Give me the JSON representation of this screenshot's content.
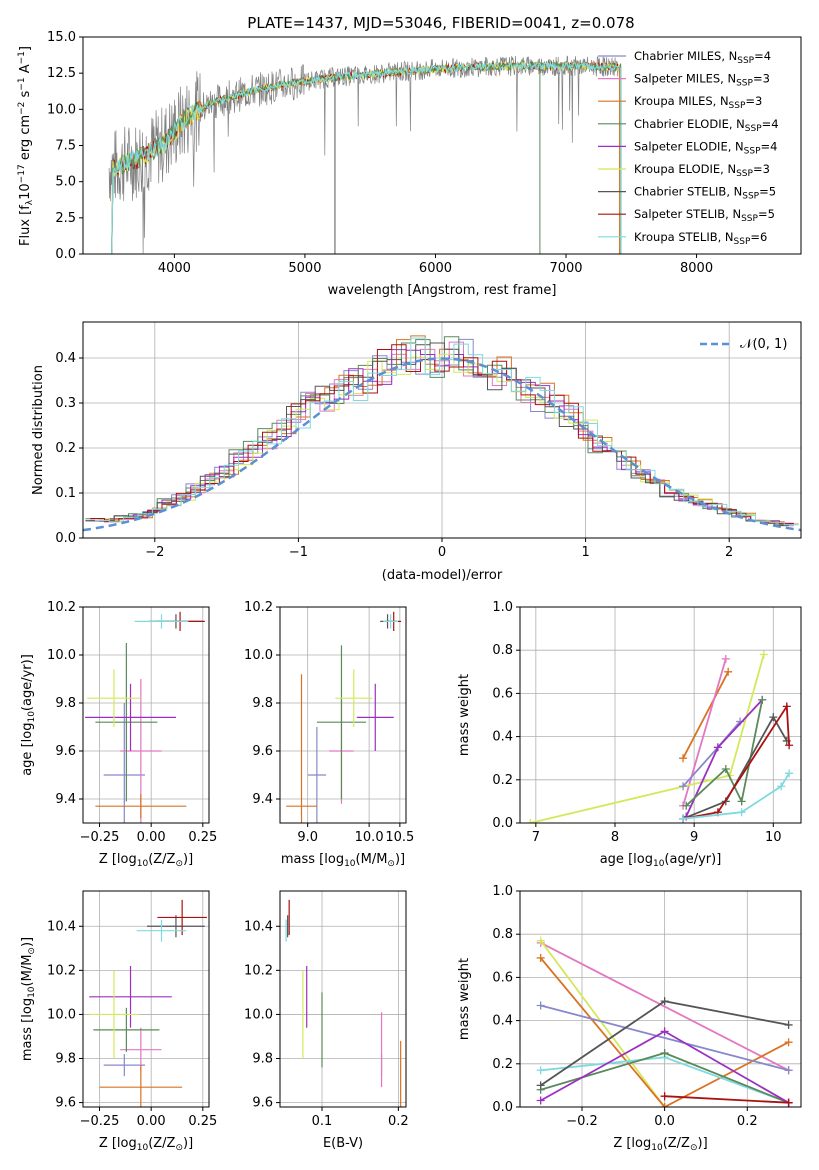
{
  "title": "PLATE=1437, MJD=53046, FIBERID=0041, z=0.078",
  "colors": {
    "chabrier_miles": "#8888cc",
    "salpeter_miles": "#e377c2",
    "kroupa_miles": "#d97323",
    "chabrier_elodie": "#5a8a5a",
    "salpeter_elodie": "#9b30c0",
    "kroupa_elodie": "#d4e85a",
    "chabrier_stelib": "#555555",
    "salpeter_stelib": "#aa1111",
    "kroupa_stelib": "#7fd9e0",
    "gaussian": "#5b8fd6",
    "spectrum": "#808080"
  },
  "panels": {
    "spectrum": {
      "xlabel": "wavelength [Angstrom, rest frame]",
      "ylabel": "Flux [f",
      "ylabel_parts": [
        "Flux [f",
        "λ",
        "10",
        "−17",
        " erg cm",
        "−2",
        " s",
        "−1",
        " A",
        "−1",
        "]"
      ],
      "xlim": [
        3300,
        8800
      ],
      "ylim": [
        0,
        15
      ],
      "xticks": [
        "4000",
        "5000",
        "6000",
        "7000",
        "8000"
      ],
      "yticks": [
        "0.0",
        "2.5",
        "5.0",
        "7.5",
        "10.0",
        "12.5",
        "15.0"
      ],
      "legend": [
        {
          "key": "chabrier_miles",
          "label": "Chabrier MILES, N",
          "sub": "SSP",
          "val": "=4"
        },
        {
          "key": "salpeter_miles",
          "label": "Salpeter MILES, N",
          "sub": "SSP",
          "val": "=3"
        },
        {
          "key": "kroupa_miles",
          "label": "Kroupa MILES, N",
          "sub": "SSP",
          "val": "=3"
        },
        {
          "key": "chabrier_elodie",
          "label": "Chabrier ELODIE, N",
          "sub": "SSP",
          "val": "=4"
        },
        {
          "key": "salpeter_elodie",
          "label": "Salpeter ELODIE, N",
          "sub": "SSP",
          "val": "=4"
        },
        {
          "key": "kroupa_elodie",
          "label": "Kroupa ELODIE, N",
          "sub": "SSP",
          "val": "=3"
        },
        {
          "key": "chabrier_stelib",
          "label": "Chabrier STELIB, N",
          "sub": "SSP",
          "val": "=5"
        },
        {
          "key": "salpeter_stelib",
          "label": "Salpeter STELIB, N",
          "sub": "SSP",
          "val": "=5"
        },
        {
          "key": "kroupa_stelib",
          "label": "Kroupa STELIB, N",
          "sub": "SSP",
          "val": "=6"
        }
      ]
    },
    "histogram": {
      "xlabel": "(data-model)/error",
      "ylabel": "Normed distribution",
      "xlim": [
        -2.5,
        2.5
      ],
      "ylim": [
        0,
        0.48
      ],
      "xticks": [
        "−2",
        "−1",
        "0",
        "1",
        "2"
      ],
      "yticks": [
        "0.0",
        "0.1",
        "0.2",
        "0.3",
        "0.4"
      ],
      "legend": "𝒩(0, 1)"
    },
    "age_vs_Z": {
      "xlabel": "Z [log",
      "xlabel_parts": [
        "Z [log",
        "10",
        "(Z/Z",
        "⊙",
        ")]"
      ],
      "ylabel_parts": [
        "age  [log",
        "10",
        "(age/yr)]"
      ],
      "xticks": [
        "−0.25",
        "0.00",
        "0.25"
      ],
      "yticks": [
        "9.4",
        "9.6",
        "9.8",
        "10.0",
        "10.2"
      ],
      "xlim": [
        -0.33,
        0.28
      ],
      "ylim": [
        9.3,
        10.2
      ]
    },
    "age_vs_mass": {
      "xlabel_parts": [
        "mass [log",
        "10",
        "(M/M",
        "⊙",
        ")]"
      ],
      "xticks": [
        "9.0",
        "10.0",
        "10.5"
      ],
      "xtick_values": [
        9.0,
        10.0,
        10.5
      ],
      "yticks": [
        "9.4",
        "9.6",
        "9.8",
        "10.0",
        "10.2"
      ],
      "xlim": [
        8.55,
        10.6
      ],
      "ylim": [
        9.3,
        10.2
      ]
    },
    "weight_vs_age": {
      "xlabel_parts": [
        "age  [log",
        "10",
        "(age/yr)]"
      ],
      "ylabel": "mass weight",
      "xticks": [
        "7",
        "8",
        "9",
        "10"
      ],
      "yticks": [
        "0.0",
        "0.2",
        "0.4",
        "0.6",
        "0.8",
        "1.0"
      ],
      "xlim": [
        6.8,
        10.35
      ],
      "ylim": [
        0,
        1
      ]
    },
    "mass_vs_Z": {
      "xlabel_parts": [
        "Z [log",
        "10",
        "(Z/Z",
        "⊙",
        ")]"
      ],
      "ylabel_parts": [
        "mass [log",
        "10",
        "(M/M",
        "⊙",
        ")]"
      ],
      "xticks": [
        "−0.25",
        "0.00",
        "0.25"
      ],
      "yticks": [
        "9.6",
        "9.8",
        "10.0",
        "10.2",
        "10.4"
      ],
      "xlim": [
        -0.33,
        0.28
      ],
      "ylim": [
        9.58,
        10.56
      ]
    },
    "mass_vs_ebv": {
      "xlabel": "E(B-V)",
      "xticks": [
        "0.1",
        "0.2"
      ],
      "yticks": [
        "9.6",
        "9.8",
        "10.0",
        "10.2",
        "10.4"
      ],
      "xlim": [
        0.045,
        0.21
      ],
      "ylim": [
        9.58,
        10.56
      ]
    },
    "weight_vs_Z": {
      "xlabel_parts": [
        "Z [log",
        "10",
        "(Z/Z",
        "⊙",
        ")]"
      ],
      "ylabel": "mass weight",
      "xticks": [
        "−0.2",
        "0.0",
        "0.2"
      ],
      "yticks": [
        "0.0",
        "0.2",
        "0.4",
        "0.6",
        "0.8",
        "1.0"
      ],
      "xlim": [
        -0.35,
        0.33
      ],
      "ylim": [
        0,
        1
      ]
    }
  },
  "chart_data": [
    {
      "type": "line",
      "title": "PLATE=1437, MJD=53046, FIBERID=0041, z=0.078",
      "xlabel": "wavelength [Angstrom, rest frame]",
      "ylabel": "Flux [fλ10^-17 erg cm^-2 s^-1 A^-1]",
      "xlim": [
        3300,
        8800
      ],
      "ylim": [
        0,
        15
      ],
      "continuum_anchor_x": [
        3550,
        3700,
        3900,
        4100,
        4300,
        4600,
        4900,
        5200,
        5600,
        6000,
        6500,
        7000,
        7500,
        8000,
        8400
      ],
      "continuum_anchor_y": [
        6.0,
        6.5,
        7.5,
        9.5,
        10.5,
        11.3,
        11.8,
        12.2,
        12.5,
        12.8,
        13.0,
        13.0,
        12.9,
        12.8,
        12.7
      ]
    },
    {
      "type": "bar",
      "xlabel": "(data-model)/error",
      "ylabel": "Normed distribution",
      "xlim": [
        -2.5,
        2.5
      ],
      "ylim": [
        0,
        0.48
      ],
      "bin_centers": [
        -2.4,
        -2.3,
        -2.2,
        -2.1,
        -2.0,
        -1.9,
        -1.8,
        -1.7,
        -1.6,
        -1.5,
        -1.4,
        -1.3,
        -1.2,
        -1.1,
        -1.0,
        -0.9,
        -0.8,
        -0.7,
        -0.6,
        -0.5,
        -0.4,
        -0.3,
        -0.2,
        -0.1,
        0.0,
        0.1,
        0.2,
        0.3,
        0.4,
        0.5,
        0.6,
        0.7,
        0.8,
        0.9,
        1.0,
        1.1,
        1.2,
        1.3,
        1.4,
        1.5,
        1.6,
        1.7,
        1.8,
        1.9,
        2.0,
        2.1,
        2.2,
        2.3,
        2.4
      ],
      "density": [
        0.04,
        0.04,
        0.045,
        0.05,
        0.06,
        0.08,
        0.09,
        0.11,
        0.13,
        0.15,
        0.18,
        0.2,
        0.22,
        0.24,
        0.27,
        0.3,
        0.31,
        0.33,
        0.34,
        0.36,
        0.38,
        0.4,
        0.41,
        0.4,
        0.4,
        0.41,
        0.4,
        0.39,
        0.37,
        0.35,
        0.33,
        0.31,
        0.29,
        0.27,
        0.24,
        0.21,
        0.19,
        0.17,
        0.14,
        0.12,
        0.1,
        0.09,
        0.08,
        0.07,
        0.06,
        0.05,
        0.04,
        0.035,
        0.03
      ],
      "gaussian": {
        "name": "𝒩(0, 1)",
        "mean": 0,
        "sigma": 1
      }
    },
    {
      "type": "scatter",
      "name": "age vs Z errorbars",
      "points": [
        {
          "c": "chabrier_miles",
          "x": -0.13,
          "y": 9.5,
          "xe": 0.1,
          "ye": 0.3
        },
        {
          "c": "salpeter_miles",
          "x": -0.05,
          "y": 9.6,
          "xe": 0.1,
          "ye": 0.3
        },
        {
          "c": "kroupa_miles",
          "x": -0.05,
          "y": 9.37,
          "xe": 0.22,
          "ye": 0.05
        },
        {
          "c": "chabrier_elodie",
          "x": -0.12,
          "y": 9.72,
          "xe": 0.15,
          "ye": 0.33
        },
        {
          "c": "salpeter_elodie",
          "x": -0.1,
          "y": 9.74,
          "xe": 0.22,
          "ye": 0.14
        },
        {
          "c": "kroupa_elodie",
          "x": -0.18,
          "y": 9.82,
          "xe": 0.13,
          "ye": 0.12
        },
        {
          "c": "chabrier_stelib",
          "x": 0.12,
          "y": 10.14,
          "xe": 0.13,
          "ye": 0.03
        },
        {
          "c": "salpeter_stelib",
          "x": 0.14,
          "y": 10.14,
          "xe": 0.12,
          "ye": 0.04
        },
        {
          "c": "kroupa_stelib",
          "x": 0.05,
          "y": 10.14,
          "xe": 0.13,
          "ye": 0.03
        }
      ]
    },
    {
      "type": "scatter",
      "name": "age vs mass errorbars",
      "points": [
        {
          "c": "chabrier_miles",
          "x": 9.15,
          "y": 9.5,
          "xe": 0.15,
          "ye": 0.2
        },
        {
          "c": "salpeter_miles",
          "x": 9.55,
          "y": 9.6,
          "xe": 0.2,
          "ye": 0.22
        },
        {
          "c": "kroupa_miles",
          "x": 8.9,
          "y": 9.37,
          "xe": 0.25,
          "ye": 0.55
        },
        {
          "c": "chabrier_elodie",
          "x": 9.55,
          "y": 9.72,
          "xe": 0.4,
          "ye": 0.32
        },
        {
          "c": "salpeter_elodie",
          "x": 10.1,
          "y": 9.74,
          "xe": 0.3,
          "ye": 0.14
        },
        {
          "c": "kroupa_elodie",
          "x": 9.75,
          "y": 9.82,
          "xe": 0.3,
          "ye": 0.12
        },
        {
          "c": "chabrier_stelib",
          "x": 10.3,
          "y": 10.14,
          "xe": 0.12,
          "ye": 0.03
        },
        {
          "c": "salpeter_stelib",
          "x": 10.4,
          "y": 10.14,
          "xe": 0.12,
          "ye": 0.04
        },
        {
          "c": "kroupa_stelib",
          "x": 10.35,
          "y": 10.14,
          "xe": 0.12,
          "ye": 0.03
        }
      ]
    },
    {
      "type": "line",
      "name": "mass weight vs age",
      "xlabel": "age [log10(age/yr)]",
      "ylabel": "mass weight",
      "series": [
        {
          "c": "kroupa_miles",
          "x": [
            8.86,
            9.43
          ],
          "y": [
            0.3,
            0.7
          ]
        },
        {
          "c": "salpeter_miles",
          "x": [
            8.86,
            9.4
          ],
          "y": [
            0.08,
            0.76
          ]
        },
        {
          "c": "kroupa_elodie",
          "x": [
            6.93,
            9.45,
            9.88
          ],
          "y": [
            0.0,
            0.22,
            0.78
          ]
        },
        {
          "c": "chabrier_miles",
          "x": [
            8.86,
            9.3,
            9.58
          ],
          "y": [
            0.17,
            0.35,
            0.47
          ]
        },
        {
          "c": "salpeter_elodie",
          "x": [
            8.9,
            9.3,
            9.86
          ],
          "y": [
            0.03,
            0.35,
            0.57
          ]
        },
        {
          "c": "chabrier_elodie",
          "x": [
            8.9,
            9.4,
            9.6,
            9.86
          ],
          "y": [
            0.08,
            0.25,
            0.1,
            0.57
          ]
        },
        {
          "c": "chabrier_stelib",
          "x": [
            8.86,
            9.4,
            10.0,
            10.17
          ],
          "y": [
            0.02,
            0.1,
            0.49,
            0.38
          ]
        },
        {
          "c": "salpeter_stelib",
          "x": [
            8.86,
            9.3,
            10.17,
            10.2
          ],
          "y": [
            0.02,
            0.05,
            0.54,
            0.36
          ]
        },
        {
          "c": "kroupa_stelib",
          "x": [
            8.86,
            9.6,
            10.1,
            10.2
          ],
          "y": [
            0.02,
            0.05,
            0.17,
            0.23
          ]
        }
      ]
    },
    {
      "type": "scatter",
      "name": "mass vs Z errorbars",
      "points": [
        {
          "c": "chabrier_miles",
          "x": -0.13,
          "y": 9.77,
          "xe": 0.1,
          "ye": 0.05
        },
        {
          "c": "salpeter_miles",
          "x": -0.05,
          "y": 9.84,
          "xe": 0.1,
          "ye": 0.1
        },
        {
          "c": "kroupa_miles",
          "x": -0.05,
          "y": 9.67,
          "xe": 0.2,
          "ye": 0.1
        },
        {
          "c": "chabrier_elodie",
          "x": -0.12,
          "y": 9.93,
          "xe": 0.16,
          "ye": 0.1
        },
        {
          "c": "salpeter_elodie",
          "x": -0.1,
          "y": 10.08,
          "xe": 0.2,
          "ye": 0.14
        },
        {
          "c": "kroupa_elodie",
          "x": -0.18,
          "y": 10.0,
          "xe": 0.12,
          "ye": 0.2
        },
        {
          "c": "chabrier_stelib",
          "x": 0.12,
          "y": 10.4,
          "xe": 0.14,
          "ye": 0.05
        },
        {
          "c": "salpeter_stelib",
          "x": 0.15,
          "y": 10.44,
          "xe": 0.12,
          "ye": 0.08
        },
        {
          "c": "kroupa_stelib",
          "x": 0.05,
          "y": 10.38,
          "xe": 0.12,
          "ye": 0.05
        }
      ]
    },
    {
      "type": "scatter",
      "name": "mass vs E(B-V) errorbars",
      "points": [
        {
          "c": "chabrier_miles",
          "x": 0.178,
          "y": 9.77,
          "ye": 0.05
        },
        {
          "c": "salpeter_miles",
          "x": 0.178,
          "y": 9.84,
          "ye": 0.17
        },
        {
          "c": "kroupa_miles",
          "x": 0.203,
          "y": 9.67,
          "ye": 0.21
        },
        {
          "c": "chabrier_elodie",
          "x": 0.1,
          "y": 9.93,
          "ye": 0.17
        },
        {
          "c": "salpeter_elodie",
          "x": 0.08,
          "y": 10.08,
          "ye": 0.14
        },
        {
          "c": "kroupa_elodie",
          "x": 0.075,
          "y": 10.0,
          "ye": 0.2
        },
        {
          "c": "chabrier_stelib",
          "x": 0.055,
          "y": 10.4,
          "ye": 0.05
        },
        {
          "c": "salpeter_stelib",
          "x": 0.057,
          "y": 10.44,
          "ye": 0.08
        },
        {
          "c": "kroupa_stelib",
          "x": 0.053,
          "y": 10.38,
          "ye": 0.05
        }
      ]
    },
    {
      "type": "line",
      "name": "mass weight vs Z",
      "xlabel": "Z [log10(Z/Zsun)]",
      "ylabel": "mass weight",
      "series": [
        {
          "c": "salpeter_miles",
          "x": [
            -0.3,
            0.3
          ],
          "y": [
            0.76,
            0.17
          ]
        },
        {
          "c": "kroupa_elodie",
          "x": [
            -0.3,
            0.0
          ],
          "y": [
            0.77,
            0.0
          ]
        },
        {
          "c": "kroupa_miles",
          "x": [
            -0.3,
            0.0,
            0.3
          ],
          "y": [
            0.69,
            0.0,
            0.3
          ]
        },
        {
          "c": "chabrier_miles",
          "x": [
            -0.3,
            0.3
          ],
          "y": [
            0.47,
            0.17
          ]
        },
        {
          "c": "kroupa_stelib",
          "x": [
            -0.3,
            0.0,
            0.3
          ],
          "y": [
            0.17,
            0.23,
            0.02
          ]
        },
        {
          "c": "chabrier_elodie",
          "x": [
            -0.3,
            0.0,
            0.3
          ],
          "y": [
            0.08,
            0.25,
            0.02
          ]
        },
        {
          "c": "salpeter_elodie",
          "x": [
            -0.3,
            0.0,
            0.3
          ],
          "y": [
            0.03,
            0.35,
            0.02
          ]
        },
        {
          "c": "chabrier_stelib",
          "x": [
            -0.3,
            0.0,
            0.3
          ],
          "y": [
            0.1,
            0.49,
            0.38
          ]
        },
        {
          "c": "salpeter_stelib",
          "x": [
            0.0,
            0.3
          ],
          "y": [
            0.05,
            0.02
          ]
        }
      ]
    }
  ]
}
